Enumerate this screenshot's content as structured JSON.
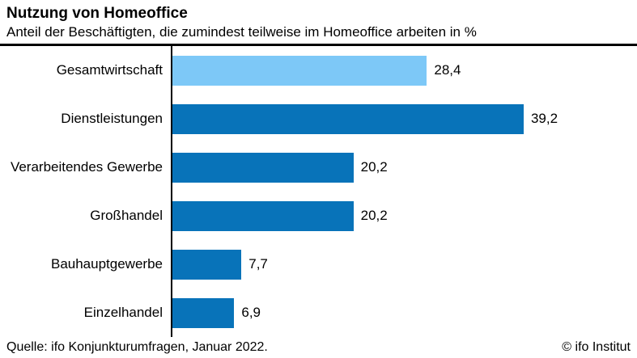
{
  "chart_data": {
    "type": "bar",
    "orientation": "horizontal",
    "title": "Nutzung von Homeoffice",
    "subtitle": "Anteil der Beschäftigten, die zumindest teilweise im Homeoffice arbeiten in %",
    "categories": [
      "Gesamtwirtschaft",
      "Dienstleistungen",
      "Verarbeitendes Gewerbe",
      "Großhandel",
      "Bauhauptgewerbe",
      "Einzelhandel"
    ],
    "values": [
      28.4,
      39.2,
      20.2,
      20.2,
      7.7,
      6.9
    ],
    "value_labels": [
      "28,4",
      "39,2",
      "20,2",
      "20,2",
      "7,7",
      "6,9"
    ],
    "unit": "%",
    "xlim": [
      0,
      51
    ],
    "grid": false,
    "legend": "none",
    "highlight_index": 0,
    "colors": {
      "highlight_bar": "#7dc8f7",
      "default_bar": "#0873b9",
      "axis": "#000000",
      "text": "#000000",
      "background": "#ffffff"
    },
    "source": "Quelle: ifo Konjunkturumfragen, Januar 2022.",
    "copyright": "© ifo Institut"
  }
}
